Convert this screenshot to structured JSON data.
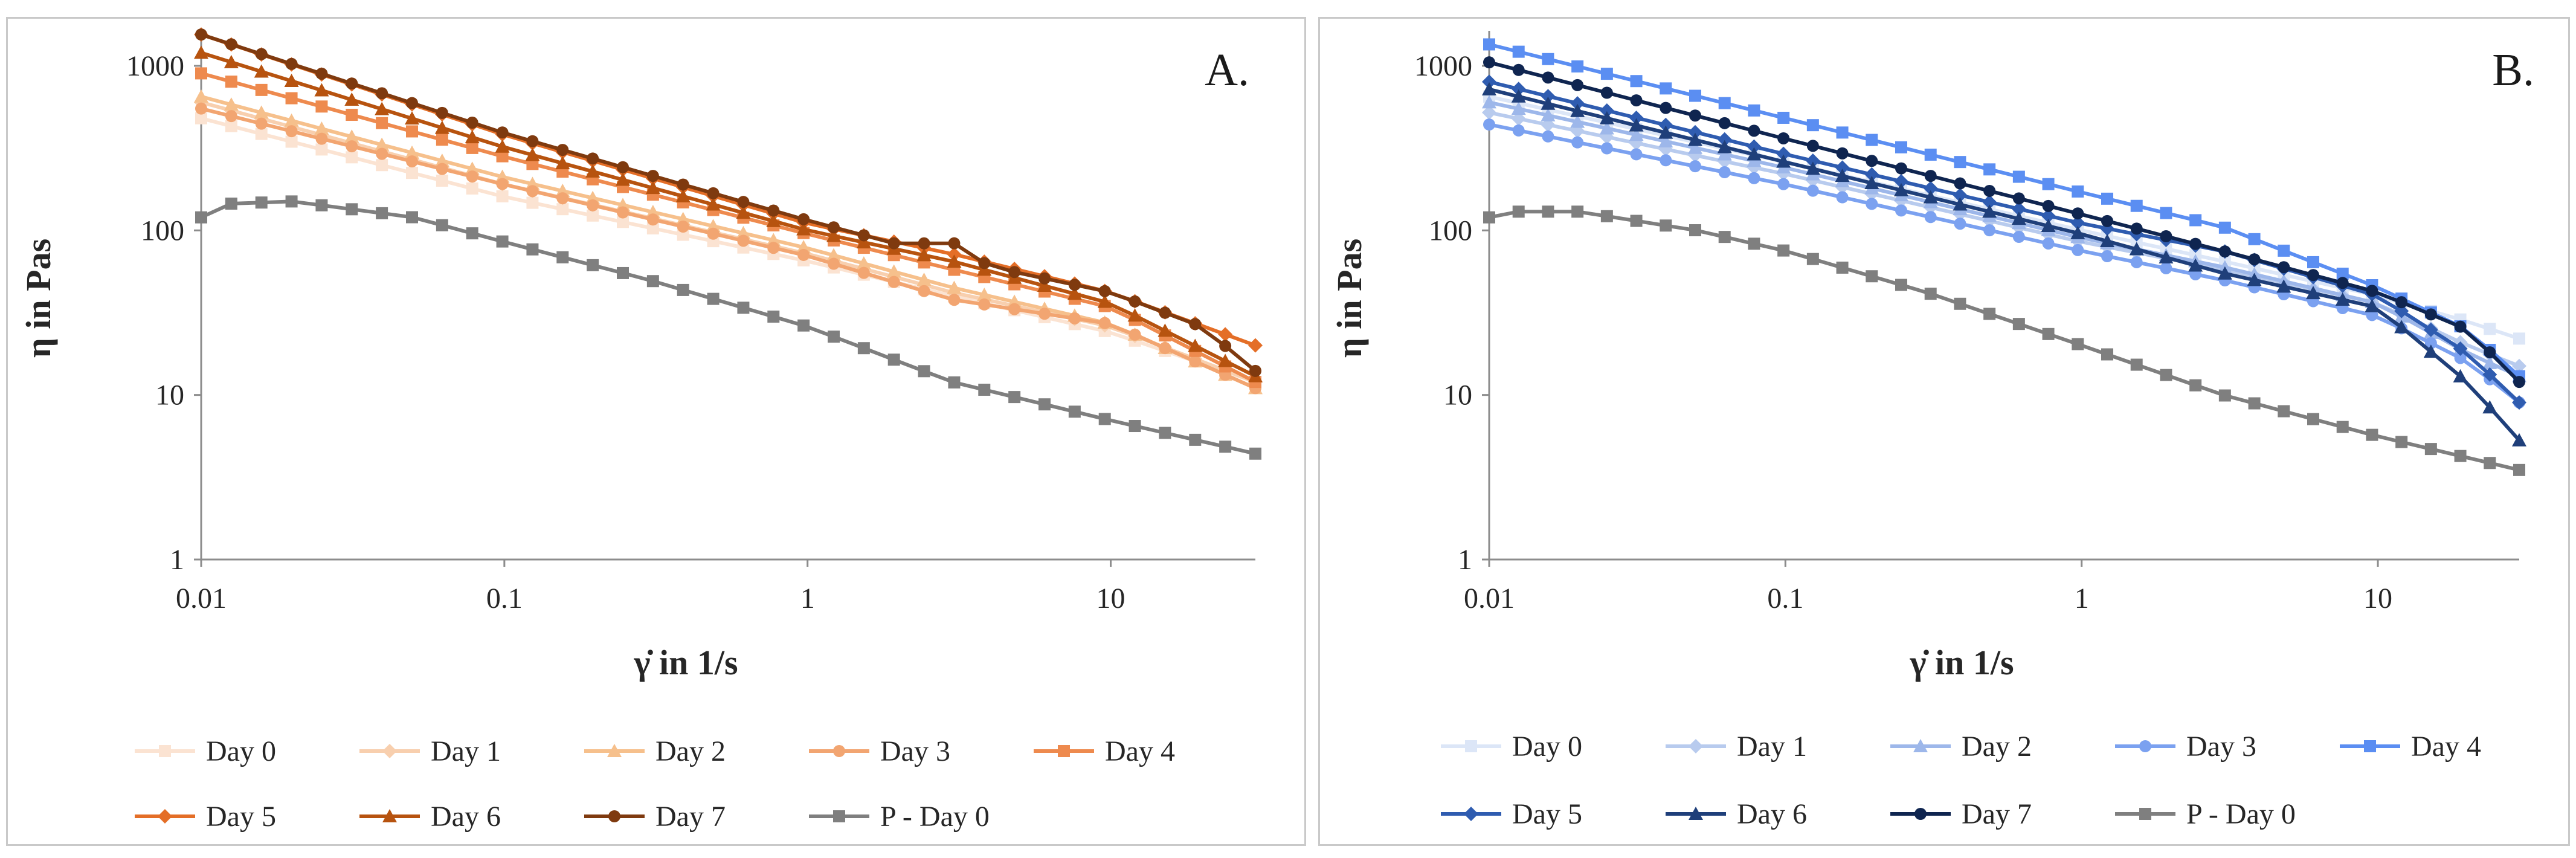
{
  "chart_data": [
    {
      "type": "line",
      "panel_label": "A.",
      "xlabel": "γ̇ in 1/s",
      "ylabel": "η in Pas",
      "xscale": "log",
      "yscale": "log",
      "xlim": [
        0.01,
        30
      ],
      "ylim": [
        1,
        1500
      ],
      "x_ticks": [
        "0.01",
        "0.1",
        "1",
        "10"
      ],
      "y_ticks": [
        "1",
        "10",
        "100",
        "1000"
      ],
      "grid": false,
      "legend_position": "bottom",
      "series": [
        {
          "name": "Day 0",
          "color": "#fbe3d2",
          "marker": "square",
          "points": [
            [
              0.01,
              480
            ],
            [
              0.1,
              160
            ],
            [
              1,
              65
            ],
            [
              3,
              40
            ],
            [
              10,
              24
            ],
            [
              30,
              12
            ]
          ]
        },
        {
          "name": "Day 1",
          "color": "#f8cfae",
          "marker": "diamond",
          "points": [
            [
              0.01,
              600
            ],
            [
              0.1,
              190
            ],
            [
              1,
              72
            ],
            [
              3,
              42
            ],
            [
              10,
              26
            ],
            [
              30,
              12
            ]
          ]
        },
        {
          "name": "Day 2",
          "color": "#f6c08c",
          "marker": "triangle",
          "points": [
            [
              0.01,
              650
            ],
            [
              0.1,
              210
            ],
            [
              1,
              78
            ],
            [
              3,
              45
            ],
            [
              10,
              27
            ],
            [
              30,
              11
            ]
          ]
        },
        {
          "name": "Day 3",
          "color": "#f2a571",
          "marker": "circle",
          "points": [
            [
              0.01,
              550
            ],
            [
              0.1,
              190
            ],
            [
              1,
              70
            ],
            [
              3,
              38
            ],
            [
              10,
              27
            ],
            [
              30,
              11
            ]
          ]
        },
        {
          "name": "Day 4",
          "color": "#ee8a4e",
          "marker": "square",
          "points": [
            [
              0.01,
              900
            ],
            [
              0.1,
              280
            ],
            [
              1,
              95
            ],
            [
              3,
              58
            ],
            [
              10,
              34
            ],
            [
              30,
              12
            ]
          ]
        },
        {
          "name": "Day 5",
          "color": "#e46e27",
          "marker": "diamond",
          "points": [
            [
              0.01,
              1550
            ],
            [
              0.1,
              380
            ],
            [
              1,
              110
            ],
            [
              3,
              72
            ],
            [
              10,
              42
            ],
            [
              30,
              20
            ]
          ]
        },
        {
          "name": "Day 6",
          "color": "#b7530f",
          "marker": "triangle",
          "points": [
            [
              0.01,
              1200
            ],
            [
              0.1,
              320
            ],
            [
              1,
              100
            ],
            [
              3,
              65
            ],
            [
              10,
              36
            ],
            [
              30,
              13
            ]
          ]
        },
        {
          "name": "Day 7",
          "color": "#7f3a0f",
          "marker": "circle",
          "points": [
            [
              0.01,
              1550
            ],
            [
              0.1,
              390
            ],
            [
              1,
              115
            ],
            [
              2,
              82
            ],
            [
              3,
              85
            ],
            [
              4,
              60
            ],
            [
              10,
              42
            ],
            [
              20,
              26
            ],
            [
              30,
              14
            ]
          ]
        },
        {
          "name": "P - Day 0",
          "color": "#7f7f7f",
          "marker": "square",
          "points": [
            [
              0.01,
              120
            ],
            [
              0.012,
              145
            ],
            [
              0.02,
              150
            ],
            [
              0.05,
              120
            ],
            [
              0.1,
              85
            ],
            [
              0.3,
              50
            ],
            [
              1,
              26
            ],
            [
              3,
              12
            ],
            [
              10,
              7
            ],
            [
              30,
              4.4
            ]
          ]
        }
      ]
    },
    {
      "type": "line",
      "panel_label": "B.",
      "xlabel": "γ̇ in 1/s",
      "ylabel": "η in Pas",
      "xscale": "log",
      "yscale": "log",
      "xlim": [
        0.01,
        30
      ],
      "ylim": [
        1,
        1500
      ],
      "x_ticks": [
        "0.01",
        "0.1",
        "1",
        "10"
      ],
      "y_ticks": [
        "1",
        "10",
        "100",
        "1000"
      ],
      "grid": false,
      "legend_position": "bottom",
      "series": [
        {
          "name": "Day 0",
          "color": "#dce6f7",
          "marker": "square",
          "points": [
            [
              0.01,
              650
            ],
            [
              0.1,
              260
            ],
            [
              1,
              100
            ],
            [
              3,
              65
            ],
            [
              10,
              40
            ],
            [
              20,
              28
            ],
            [
              30,
              22
            ]
          ]
        },
        {
          "name": "Day 1",
          "color": "#b8cbee",
          "marker": "diamond",
          "points": [
            [
              0.01,
              520
            ],
            [
              0.1,
              220
            ],
            [
              1,
              85
            ],
            [
              3,
              58
            ],
            [
              10,
              36
            ],
            [
              20,
              20
            ],
            [
              30,
              15
            ]
          ]
        },
        {
          "name": "Day 2",
          "color": "#9db7ea",
          "marker": "triangle",
          "points": [
            [
              0.01,
              600
            ],
            [
              0.1,
              240
            ],
            [
              1,
              90
            ],
            [
              3,
              60
            ],
            [
              10,
              36
            ],
            [
              20,
              18
            ],
            [
              30,
              13
            ]
          ]
        },
        {
          "name": "Day 3",
          "color": "#7ba1f0",
          "marker": "circle",
          "points": [
            [
              0.01,
              440
            ],
            [
              0.1,
              190
            ],
            [
              1,
              75
            ],
            [
              3,
              50
            ],
            [
              10,
              30
            ],
            [
              20,
              16
            ],
            [
              30,
              9
            ]
          ]
        },
        {
          "name": "Day 4",
          "color": "#5b8ef2",
          "marker": "square",
          "points": [
            [
              0.01,
              1350
            ],
            [
              0.1,
              480
            ],
            [
              1,
              170
            ],
            [
              3,
              105
            ],
            [
              10,
              45
            ],
            [
              20,
              25
            ],
            [
              30,
              13
            ]
          ]
        },
        {
          "name": "Day 5",
          "color": "#2f5cb0",
          "marker": "diamond",
          "points": [
            [
              0.01,
              800
            ],
            [
              0.1,
              290
            ],
            [
              1,
              110
            ],
            [
              3,
              75
            ],
            [
              10,
              40
            ],
            [
              20,
              18
            ],
            [
              30,
              9
            ]
          ]
        },
        {
          "name": "Day 6",
          "color": "#1f3f7a",
          "marker": "triangle",
          "points": [
            [
              0.01,
              720
            ],
            [
              0.1,
              260
            ],
            [
              1,
              95
            ],
            [
              3,
              55
            ],
            [
              10,
              34
            ],
            [
              20,
              12
            ],
            [
              30,
              5.3
            ]
          ]
        },
        {
          "name": "Day 7",
          "color": "#0f2550",
          "marker": "circle",
          "points": [
            [
              0.01,
              1050
            ],
            [
              0.1,
              360
            ],
            [
              1,
              125
            ],
            [
              3,
              75
            ],
            [
              10,
              42
            ],
            [
              20,
              25
            ],
            [
              30,
              12
            ]
          ]
        },
        {
          "name": "P - Day 0",
          "color": "#7f7f7f",
          "marker": "square",
          "points": [
            [
              0.01,
              120
            ],
            [
              0.012,
              130
            ],
            [
              0.02,
              130
            ],
            [
              0.05,
              100
            ],
            [
              0.1,
              75
            ],
            [
              0.3,
              42
            ],
            [
              1,
              20
            ],
            [
              3,
              10
            ],
            [
              10,
              5.6
            ],
            [
              30,
              3.5
            ]
          ]
        }
      ]
    }
  ]
}
